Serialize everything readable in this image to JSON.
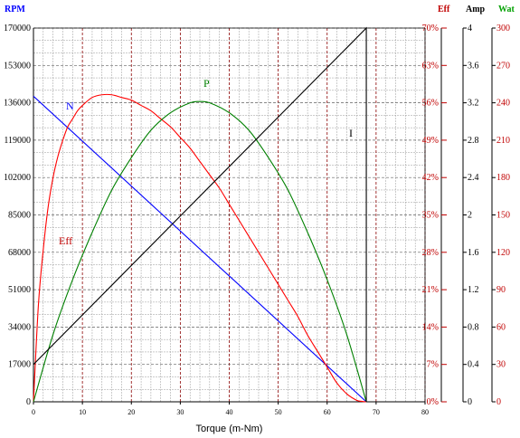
{
  "chart_data": {
    "type": "line",
    "xlabel": "Torque (m-Nm)",
    "xlim": [
      0,
      80
    ],
    "x_ticks": [
      "0",
      "10",
      "20",
      "30",
      "40",
      "50",
      "60",
      "70",
      "80"
    ],
    "axes": [
      {
        "id": "rpm",
        "title": "RPM",
        "color": "#0000ff",
        "label_color": "#000000",
        "range": [
          0,
          170000
        ],
        "ticks": [
          "0",
          "17000",
          "34000",
          "51000",
          "68000",
          "85000",
          "102000",
          "119000",
          "136000",
          "153000",
          "170000"
        ]
      },
      {
        "id": "eff",
        "title": "Eff",
        "color": "#c00000",
        "label_color": "#c00000",
        "range": [
          0,
          70
        ],
        "ticks": [
          "0%",
          "7%",
          "14%",
          "21%",
          "28%",
          "35%",
          "42%",
          "49%",
          "56%",
          "63%",
          "70%"
        ]
      },
      {
        "id": "amp",
        "title": "Amp",
        "color": "#000000",
        "label_color": "#000000",
        "range": [
          0,
          4
        ],
        "ticks": [
          "0",
          "0.4",
          "0.8",
          "1.2",
          "1.6",
          "2",
          "2.4",
          "2.8",
          "3.2",
          "3.6",
          "4"
        ]
      },
      {
        "id": "wat",
        "title": "Wat",
        "color": "#00a000",
        "label_color": "#c00000",
        "range": [
          0,
          300
        ],
        "ticks": [
          "0",
          "30",
          "60",
          "90",
          "120",
          "150",
          "180",
          "210",
          "240",
          "270",
          "300"
        ]
      }
    ],
    "series": [
      {
        "label": "N",
        "axis": "rpm",
        "color": "#0000ff",
        "x": [
          0,
          68
        ],
        "y": [
          139000,
          0
        ]
      },
      {
        "label": "Eff",
        "axis": "eff",
        "color": "#ff0000",
        "x": [
          0,
          1,
          2,
          3,
          4,
          5,
          6,
          7,
          8,
          9,
          10,
          12,
          14,
          16,
          18,
          20,
          22,
          24,
          26,
          28,
          30,
          32,
          34,
          36,
          38,
          40,
          42,
          44,
          46,
          48,
          50,
          52,
          54,
          56,
          58,
          60,
          62,
          64,
          66,
          67,
          68
        ],
        "y": [
          0,
          18,
          28.5,
          36.5,
          42,
          46,
          49,
          51.5,
          53,
          54.5,
          55.5,
          57,
          57.5,
          57.5,
          57,
          56.5,
          55.5,
          54.5,
          53,
          51.5,
          49.5,
          47.5,
          45,
          42.5,
          40,
          37,
          34,
          31,
          28,
          25,
          22,
          19,
          16,
          12.5,
          9.5,
          6.5,
          3.5,
          1.5,
          0.3,
          0.1,
          0
        ]
      },
      {
        "label": "P",
        "axis": "wat",
        "color": "#008000",
        "x": [
          0,
          4,
          8,
          12,
          16,
          20,
          24,
          28,
          32,
          34,
          36,
          40,
          44,
          48,
          52,
          56,
          60,
          64,
          68
        ],
        "y": [
          0,
          54,
          98,
          136,
          170,
          196,
          218,
          232,
          240,
          241,
          240,
          232,
          218,
          196,
          170,
          136,
          98,
          54,
          0
        ]
      },
      {
        "label": "I",
        "axis": "amp",
        "color": "#000000",
        "x": [
          0,
          68,
          68
        ],
        "y": [
          0.4,
          4.0,
          0
        ]
      }
    ],
    "grid": true
  }
}
